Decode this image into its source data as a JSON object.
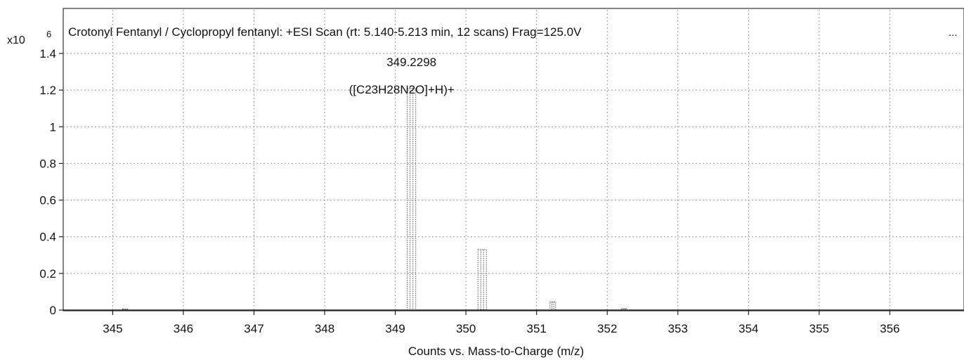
{
  "chart_data": {
    "type": "bar",
    "title": "Crotonyl  Fentanyl / Cyclopropyl fentanyl: +ESI Scan (rt: 5.140-5.213 min, 12 scans) Frag=125.0V",
    "title_suffix": "...",
    "xlabel": "Counts vs. Mass-to-Charge (m/z)",
    "y_scale_prefix": "x10",
    "y_scale_exponent": "6",
    "xlim": [
      344.3,
      357.05
    ],
    "ylim": [
      0,
      1.4
    ],
    "x_ticks": [
      345,
      346,
      347,
      348,
      349,
      350,
      351,
      352,
      353,
      354,
      355,
      356
    ],
    "y_ticks": [
      0,
      0.2,
      0.4,
      0.6,
      0.8,
      1,
      1.2,
      1.4
    ],
    "y_tick_labels": [
      "0",
      "0.2",
      "0.4",
      "0.6",
      "0.8",
      "1",
      "1.2",
      "1.4"
    ],
    "grid": true,
    "peaks": [
      {
        "mz": 345.18,
        "intensity": 0.004
      },
      {
        "mz": 349.2298,
        "intensity": 1.21
      },
      {
        "mz": 350.23,
        "intensity": 0.33
      },
      {
        "mz": 351.23,
        "intensity": 0.045
      },
      {
        "mz": 352.24,
        "intensity": 0.008
      }
    ],
    "annotations": [
      {
        "mz": 349.2298,
        "line1": "349.2298",
        "line2": "([C23H28N2O]+H)+"
      }
    ],
    "colors": {
      "peak": "#555555",
      "axis": "#333333",
      "grid": "#9a9a9a"
    }
  }
}
